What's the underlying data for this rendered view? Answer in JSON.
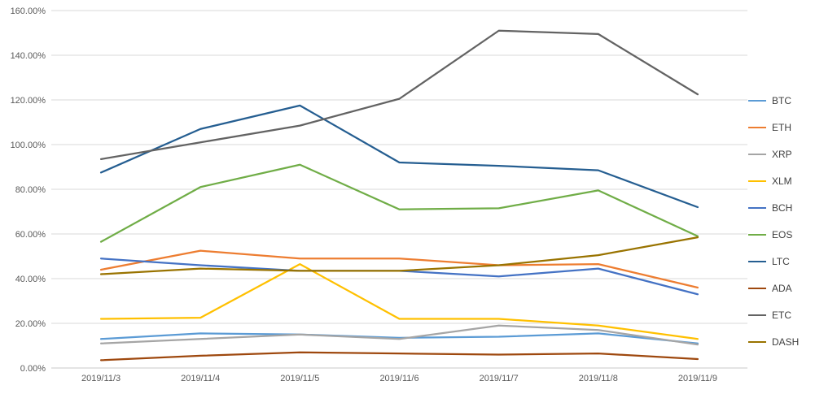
{
  "chart_data": {
    "type": "line",
    "title": "",
    "xlabel": "",
    "ylabel": "",
    "categories": [
      "2019/11/3",
      "2019/11/4",
      "2019/11/5",
      "2019/11/6",
      "2019/11/7",
      "2019/11/8",
      "2019/11/9"
    ],
    "series": [
      {
        "name": "BTC",
        "color": "#5B9BD5",
        "values": [
          13.0,
          15.5,
          15.0,
          13.5,
          14.0,
          15.5,
          11.0
        ]
      },
      {
        "name": "ETH",
        "color": "#ED7D31",
        "values": [
          44.0,
          52.5,
          49.0,
          49.0,
          46.0,
          46.5,
          36.0
        ]
      },
      {
        "name": "XRP",
        "color": "#A5A5A5",
        "values": [
          11.0,
          13.0,
          15.0,
          13.0,
          19.0,
          17.0,
          10.5
        ]
      },
      {
        "name": "XLM",
        "color": "#FFC000",
        "values": [
          22.0,
          22.5,
          46.5,
          22.0,
          22.0,
          19.0,
          13.0
        ]
      },
      {
        "name": "BCH",
        "color": "#4472C4",
        "values": [
          49.0,
          46.0,
          43.5,
          43.5,
          41.0,
          44.5,
          33.0
        ]
      },
      {
        "name": "EOS",
        "color": "#70AD47",
        "values": [
          56.5,
          81.0,
          91.0,
          71.0,
          71.5,
          79.5,
          59.0
        ]
      },
      {
        "name": "LTC",
        "color": "#255E91",
        "values": [
          87.5,
          107.0,
          117.5,
          92.0,
          90.5,
          88.5,
          72.0
        ]
      },
      {
        "name": "ADA",
        "color": "#9E480E",
        "values": [
          3.5,
          5.5,
          7.0,
          6.5,
          6.0,
          6.5,
          4.0
        ]
      },
      {
        "name": "ETC",
        "color": "#636363",
        "values": [
          93.5,
          101.0,
          108.5,
          120.5,
          151.0,
          149.5,
          122.5
        ]
      },
      {
        "name": "DASH",
        "color": "#997300",
        "values": [
          42.0,
          44.5,
          43.5,
          43.5,
          46.0,
          50.5,
          58.5
        ]
      }
    ],
    "ylim": [
      0,
      160
    ],
    "ytick": 20,
    "y_tick_labels": [
      "0.00%",
      "20.00%",
      "40.00%",
      "60.00%",
      "80.00%",
      "100.00%",
      "120.00%",
      "140.00%",
      "160.00%"
    ],
    "grid": "horizontal",
    "legend_position": "right",
    "axis_label_color": "#595959",
    "gridline_color": "#D9D9D9",
    "axis_line_color": "#C8C8C8"
  }
}
